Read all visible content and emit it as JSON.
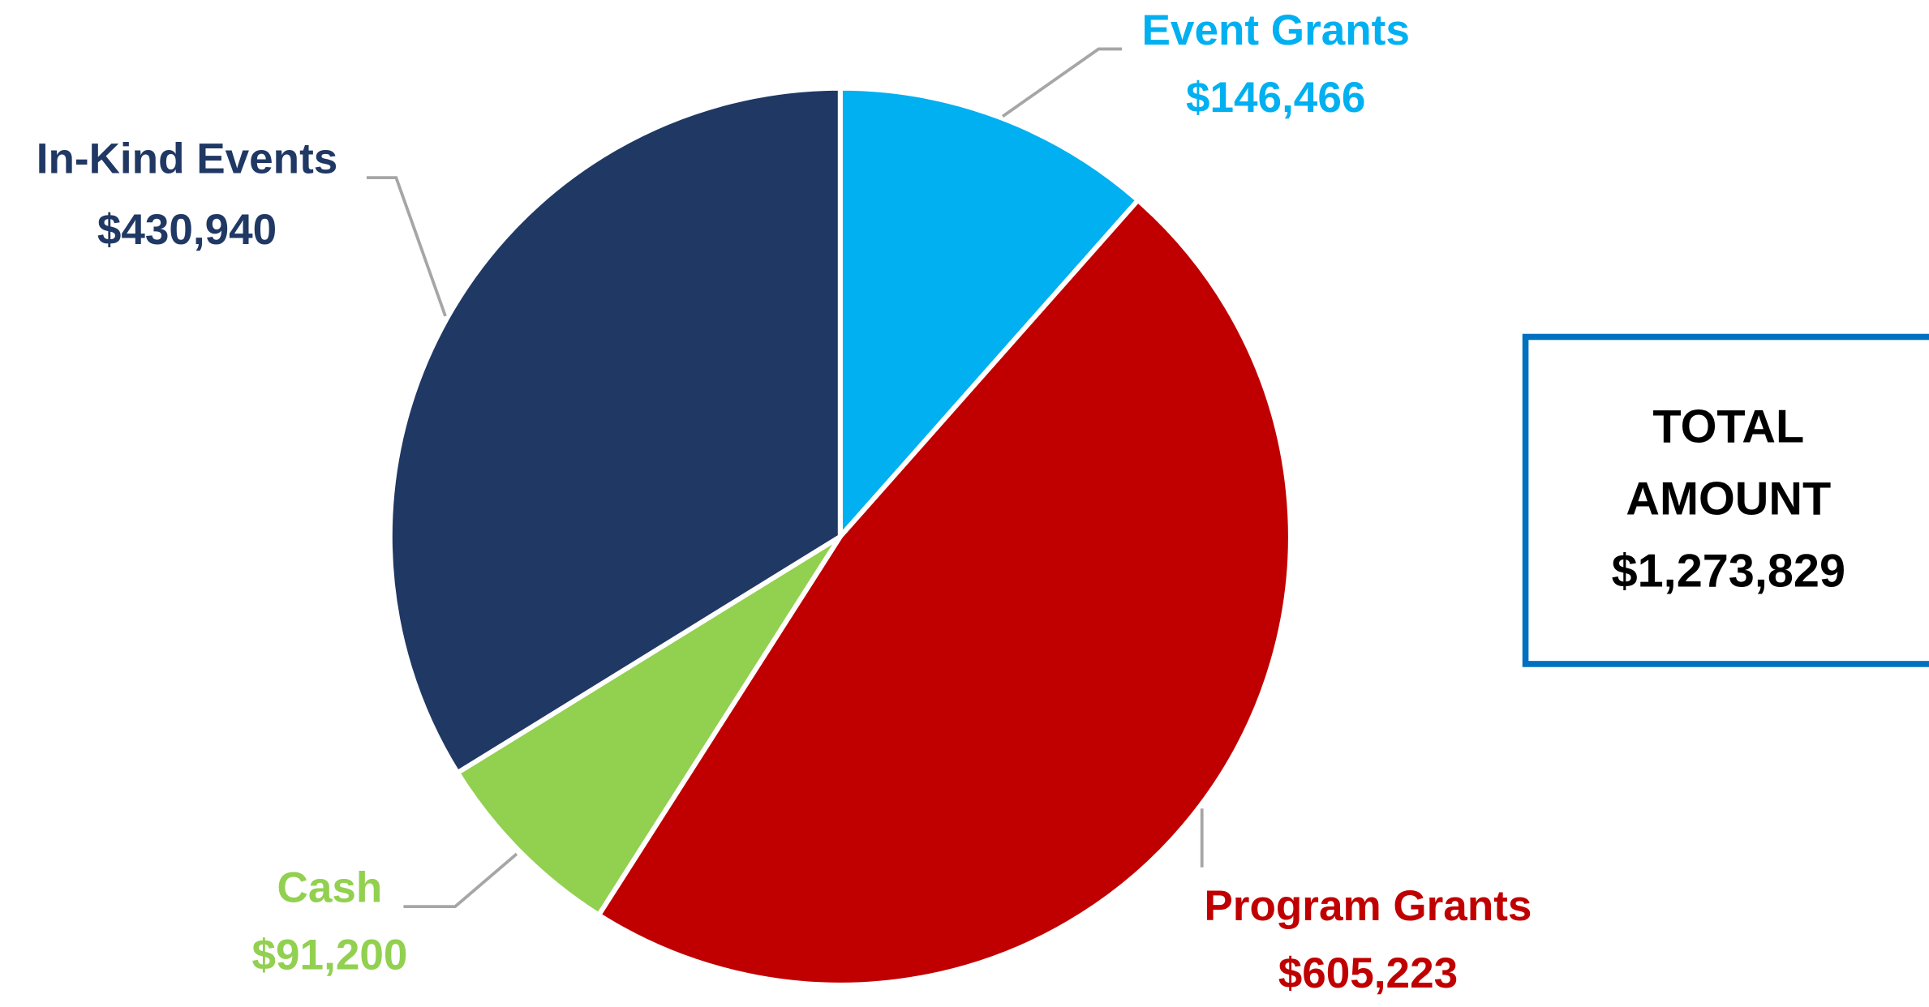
{
  "chart_data": {
    "type": "pie",
    "categories": [
      "Event Grants",
      "Program Grants",
      "Cash",
      "In-Kind Events"
    ],
    "values": [
      146466,
      605223,
      91200,
      430940
    ],
    "value_labels": [
      "$146,466",
      "$605,223",
      "$91,200",
      "$430,940"
    ],
    "colors": [
      "#00b0f0",
      "#c00000",
      "#92d050",
      "#203864"
    ],
    "total_label": "TOTAL AMOUNT",
    "total_value_label": "$1,273,829"
  }
}
